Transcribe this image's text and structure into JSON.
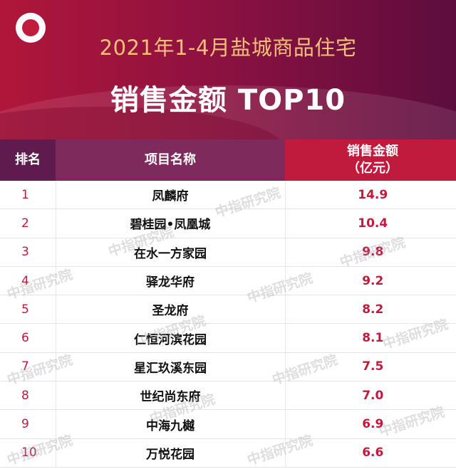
{
  "header": {
    "subtitle": "2021年1-4月盐城商品住宅",
    "title": "销售金额 TOP10"
  },
  "table": {
    "columns": [
      "排名",
      "项目名称",
      "销售金额\n（亿元）"
    ],
    "rows": [
      {
        "rank": "1",
        "name": "凤麟府",
        "amount": "14.9"
      },
      {
        "rank": "2",
        "name": "碧桂园•凤凰城",
        "amount": "10.4"
      },
      {
        "rank": "3",
        "name": "在水一方家园",
        "amount": "9.8"
      },
      {
        "rank": "4",
        "name": "驿龙华府",
        "amount": "9.2"
      },
      {
        "rank": "5",
        "name": "圣龙府",
        "amount": "8.2"
      },
      {
        "rank": "6",
        "name": "仁恒河滨花园",
        "amount": "8.1"
      },
      {
        "rank": "7",
        "name": "星汇玖溪东园",
        "amount": "7.5"
      },
      {
        "rank": "8",
        "name": "世纪尚东府",
        "amount": "7.0"
      },
      {
        "rank": "9",
        "name": "中海九樾",
        "amount": "6.9"
      },
      {
        "rank": "10",
        "name": "万悦花园",
        "amount": "6.6"
      }
    ]
  },
  "watermark": "中指研究院",
  "colors": {
    "accent_red": "#c01a3c",
    "banner_left": "#b0163a",
    "banner_right": "#5c0d3e",
    "subtitle_gold": "#f3c07a"
  }
}
